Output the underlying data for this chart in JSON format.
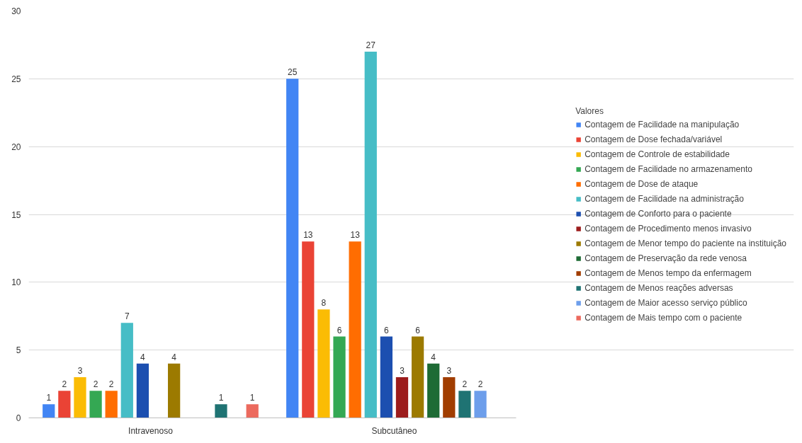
{
  "chart_data": {
    "type": "bar",
    "categories": [
      "Intravenoso",
      "Subcutâneo"
    ],
    "legend_title": "Valores",
    "legend": "right",
    "grid": "y",
    "data_labels": true,
    "ylim": [
      0,
      30
    ],
    "yticks": [
      0,
      5,
      10,
      15,
      20,
      25,
      30
    ],
    "series": [
      {
        "name": "Contagem de Facilidade na manipulação",
        "color": "#4285f4",
        "values": [
          1,
          25
        ]
      },
      {
        "name": "Contagem de Dose fechada/variável",
        "color": "#ea4335",
        "values": [
          2,
          13
        ]
      },
      {
        "name": "Contagem de Controle de estabilidade",
        "color": "#fbbc04",
        "values": [
          3,
          8
        ]
      },
      {
        "name": "Contagem de Facilidade no armazenamento",
        "color": "#34a853",
        "values": [
          2,
          6
        ]
      },
      {
        "name": "Contagem de Dose de ataque",
        "color": "#ff6d01",
        "values": [
          2,
          13
        ]
      },
      {
        "name": "Contagem de Facilidade na administração",
        "color": "#46bdc6",
        "values": [
          7,
          27
        ]
      },
      {
        "name": "Contagem de Conforto para o paciente",
        "color": "#1c4fb0",
        "values": [
          4,
          6
        ]
      },
      {
        "name": "Contagem de Procedimento menos invasivo",
        "color": "#9c1c1c",
        "values": [
          null,
          3
        ]
      },
      {
        "name": "Contagem de Menor tempo do paciente na instituição",
        "color": "#9c7a00",
        "values": [
          4,
          6
        ]
      },
      {
        "name": "Contagem de Preservação da rede venosa",
        "color": "#1e6b35",
        "values": [
          null,
          4
        ]
      },
      {
        "name": "Contagem de Menos tempo da enfermagem",
        "color": "#a13d00",
        "values": [
          null,
          3
        ]
      },
      {
        "name": "Contagem de Menos reações adversas",
        "color": "#1f7373",
        "values": [
          1,
          2
        ]
      },
      {
        "name": "Contagem de Maior acesso serviço público",
        "color": "#6d9eeb",
        "values": [
          null,
          2
        ]
      },
      {
        "name": "Contagem de Mais tempo com o paciente",
        "color": "#ec6a5e",
        "values": [
          1,
          null
        ]
      }
    ]
  }
}
